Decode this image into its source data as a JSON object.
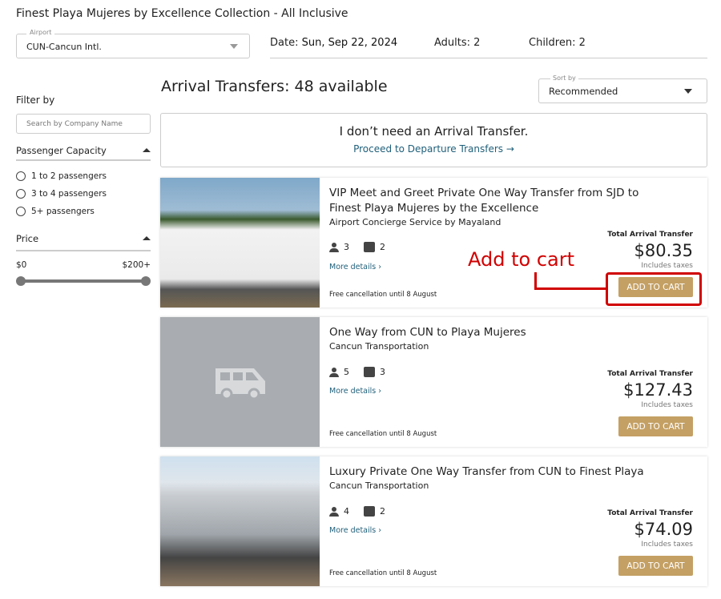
{
  "title": "Finest Playa Mujeres by Excellence Collection - All Inclusive",
  "airport": {
    "label": "Airport",
    "value": "CUN-Cancun Intl."
  },
  "date": {
    "label": "Date:",
    "value": "Sun, Sep 22, 2024"
  },
  "adults": "Adults: 2",
  "children": "Children: 2",
  "filter": {
    "title": "Filter by",
    "search_placeholder": "Search by Company Name",
    "capacity_title": "Passenger Capacity",
    "capacity_options": [
      "1 to 2 passengers",
      "3 to 4 passengers",
      "5+ passengers"
    ],
    "price_title": "Price",
    "price_min": "$0",
    "price_max": "$200+"
  },
  "heading": {
    "label": "Arrival Transfers:",
    "count": "48 available"
  },
  "sort": {
    "label": "Sort by",
    "value": "Recommended"
  },
  "no_transfer": {
    "text": "I don’t need an Arrival Transfer.",
    "link": "Proceed to Departure Transfers →"
  },
  "cards": [
    {
      "name": "VIP Meet and Greet Private One Way Transfer from SJD to Finest Playa Mujeres by the Excellence",
      "company": "Airport Concierge Service by Mayaland",
      "passengers": "3",
      "bags": "2",
      "more": "More details ›",
      "free": "Free cancellation until 8 August",
      "total_label": "Total Arrival Transfer",
      "price": "$80.35",
      "tax": "Includes taxes",
      "button": "ADD TO CART"
    },
    {
      "name": "One Way from CUN to Playa Mujeres",
      "company": "Cancun Transportation",
      "passengers": "5",
      "bags": "3",
      "more": "More details ›",
      "free": "Free cancellation until 8 August",
      "total_label": "Total Arrival Transfer",
      "price": "$127.43",
      "tax": "Includes taxes",
      "button": "ADD TO CART"
    },
    {
      "name": "Luxury Private One Way Transfer from CUN to Finest Playa",
      "company": "Cancun Transportation",
      "passengers": "4",
      "bags": "2",
      "more": "More details ›",
      "free": "Free cancellation until 8 August",
      "total_label": "Total Arrival Transfer",
      "price": "$74.09",
      "tax": "Includes taxes",
      "button": "ADD TO CART"
    }
  ],
  "annotation": "Add to cart",
  "colors": {
    "accent": "#c4a064",
    "link": "#1f5f7a",
    "annotation": "#d10000"
  }
}
